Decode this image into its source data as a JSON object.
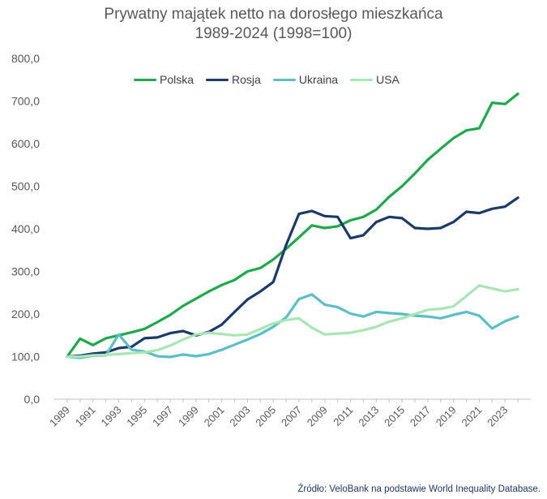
{
  "chart_data": {
    "type": "line",
    "title": "Prywatny majątek netto na dorosłego mieszkańca",
    "subtitle": "1989-2024 (1998=100)",
    "ylim": [
      0,
      800
    ],
    "yticks": [
      "0,0",
      "100,0",
      "200,0",
      "300,0",
      "400,0",
      "500,0",
      "600,0",
      "700,0",
      "800,0"
    ],
    "ytick_values": [
      0,
      100,
      200,
      300,
      400,
      500,
      600,
      700,
      800
    ],
    "xticks": [
      "1989",
      "1991",
      "1993",
      "1995",
      "1997",
      "1999",
      "2001",
      "2003",
      "2005",
      "2007",
      "2009",
      "2011",
      "2013",
      "2015",
      "2017",
      "2019",
      "2021",
      "2023"
    ],
    "x": [
      1989,
      1990,
      1991,
      1992,
      1993,
      1994,
      1995,
      1996,
      1997,
      1998,
      1999,
      2000,
      2001,
      2002,
      2003,
      2004,
      2005,
      2006,
      2007,
      2008,
      2009,
      2010,
      2011,
      2012,
      2013,
      2014,
      2015,
      2016,
      2017,
      2018,
      2019,
      2020,
      2021,
      2022,
      2023,
      2024
    ],
    "grid": false,
    "legend_position": "top",
    "series": [
      {
        "name": "Polska",
        "color": "#1fa94a",
        "values": [
          100,
          142,
          127,
          143,
          150,
          157,
          165,
          181,
          198,
          219,
          236,
          253,
          268,
          280,
          300,
          308,
          328,
          353,
          380,
          408,
          402,
          406,
          420,
          428,
          445,
          475,
          500,
          530,
          562,
          588,
          613,
          631,
          636,
          696,
          693,
          717
        ]
      },
      {
        "name": "Rosja",
        "color": "#1b3a6b",
        "values": [
          100,
          102,
          107,
          110,
          120,
          123,
          143,
          145,
          155,
          160,
          150,
          158,
          175,
          205,
          234,
          253,
          275,
          362,
          435,
          442,
          430,
          428,
          378,
          385,
          416,
          428,
          425,
          402,
          400,
          402,
          416,
          440,
          437,
          447,
          452,
          473
        ]
      },
      {
        "name": "Ukraina",
        "color": "#5bbfc4",
        "values": [
          100,
          97,
          102,
          103,
          152,
          116,
          112,
          101,
          99,
          105,
          101,
          106,
          116,
          128,
          140,
          153,
          170,
          192,
          235,
          246,
          222,
          216,
          201,
          194,
          205,
          202,
          200,
          196,
          194,
          190,
          198,
          205,
          196,
          166,
          183,
          194
        ]
      },
      {
        "name": "USA",
        "color": "#a8e6b4",
        "values": [
          100,
          100,
          103,
          104,
          106,
          108,
          110,
          115,
          126,
          140,
          152,
          156,
          153,
          150,
          152,
          165,
          178,
          186,
          190,
          168,
          152,
          154,
          156,
          162,
          170,
          182,
          190,
          200,
          210,
          212,
          218,
          242,
          267,
          260,
          253,
          258
        ]
      }
    ]
  },
  "source_text": "Źródło: VeloBank na podstawie World Inequality Database."
}
